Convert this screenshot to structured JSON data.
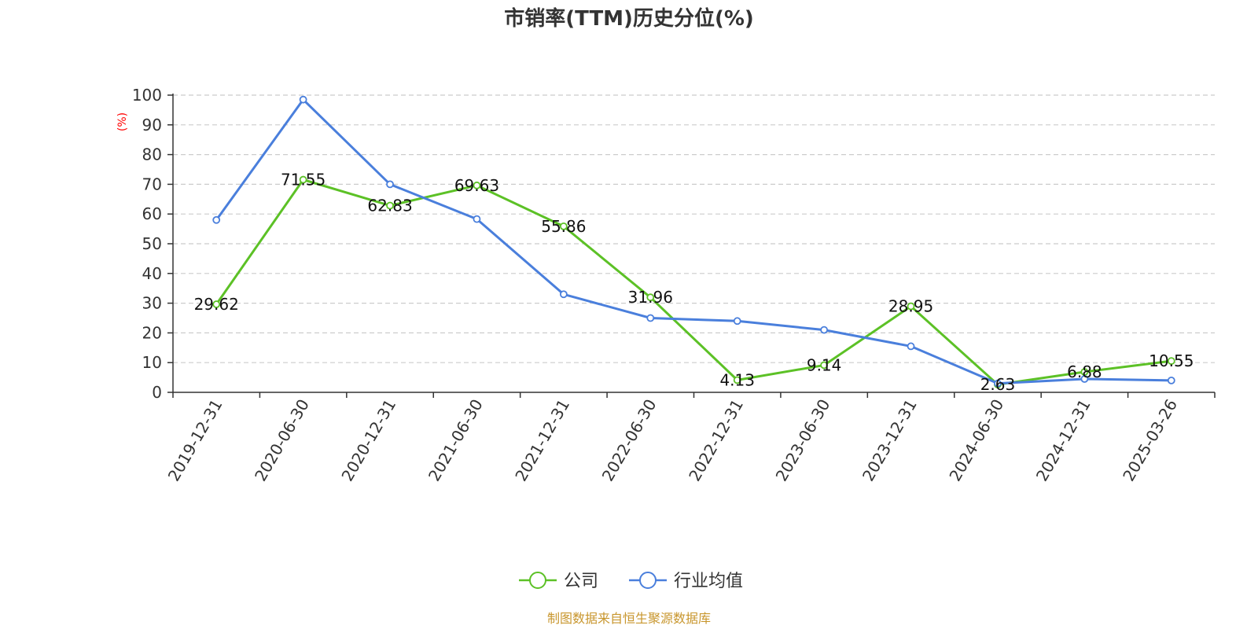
{
  "chart_data": {
    "type": "line",
    "title": "市销率(TTM)历史分位(%)",
    "ylabel": "(%)",
    "xlabel": "",
    "ylim": [
      0,
      100
    ],
    "yticks": [
      0,
      10,
      20,
      30,
      40,
      50,
      60,
      70,
      80,
      90,
      100
    ],
    "grid": true,
    "legend_position": "bottom-center",
    "categories": [
      "2019-12-31",
      "2020-06-30",
      "2020-12-31",
      "2021-06-30",
      "2021-12-31",
      "2022-06-30",
      "2022-12-31",
      "2023-06-30",
      "2023-12-31",
      "2024-06-30",
      "2024-12-31",
      "2025-03-26"
    ],
    "series": [
      {
        "name": "公司",
        "color": "#5cc126",
        "values": [
          29.62,
          71.55,
          62.83,
          69.63,
          55.86,
          31.96,
          4.13,
          9.14,
          28.95,
          2.63,
          6.88,
          10.55
        ],
        "show_labels": true
      },
      {
        "name": "行业均值",
        "color": "#4a7fdc",
        "values": [
          58,
          98.5,
          70,
          58.3,
          33,
          25,
          24,
          21,
          15.5,
          3,
          4.5,
          4
        ],
        "show_labels": false
      }
    ],
    "source": "制图数据来自恒生聚源数据库"
  }
}
